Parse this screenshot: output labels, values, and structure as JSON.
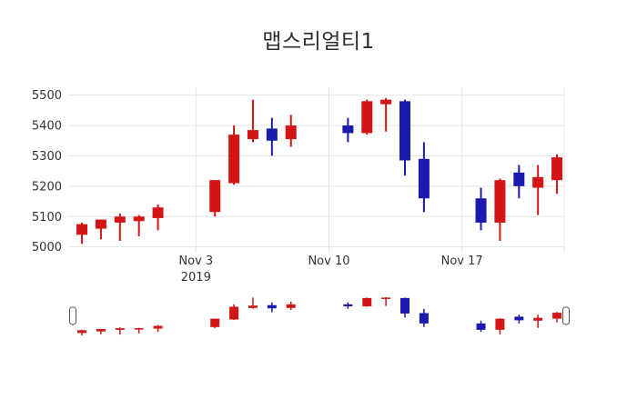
{
  "title": {
    "text": "맵스리얼티1"
  },
  "colors": {
    "increasing": "#d21515",
    "decreasing": "#1a1aaf",
    "grid": "#e6e6e6",
    "axis_text": "#333333",
    "title_text": "#2d2d2d",
    "slider_handle_border": "#555555",
    "slider_handle_fill": "#ffffff"
  },
  "y_axis": {
    "tick_values": [
      5000,
      5100,
      5200,
      5300,
      5400,
      5500
    ],
    "tick_labels": [
      "5000",
      "5100",
      "5200",
      "5300",
      "5400",
      "5500"
    ],
    "range": [
      4981,
      5529
    ]
  },
  "x_axis": {
    "range_days": [
      -0.72,
      25.38
    ],
    "ticks": [
      {
        "line1": "Nov 3",
        "line2": "2019",
        "day": 6
      },
      {
        "line1": "Nov 10",
        "line2": "",
        "day": 13
      },
      {
        "line1": "Nov 17",
        "line2": "",
        "day": 20
      }
    ]
  },
  "chart_data": {
    "type": "candlestick",
    "title": "맵스리얼티1",
    "legend_position": "none",
    "grid": "on",
    "rangeslider": {
      "visible": true,
      "value_range": [
        5010,
        5490
      ]
    },
    "increasing_color": "#d21515",
    "decreasing_color": "#1a1aaf",
    "ylim": [
      4981,
      5529
    ],
    "dates": [
      "2019-10-28",
      "2019-10-29",
      "2019-10-30",
      "2019-10-31",
      "2019-11-01",
      "2019-11-04",
      "2019-11-05",
      "2019-11-06",
      "2019-11-07",
      "2019-11-08",
      "2019-11-11",
      "2019-11-12",
      "2019-11-13",
      "2019-11-14",
      "2019-11-15",
      "2019-11-18",
      "2019-11-19",
      "2019-11-20",
      "2019-11-21",
      "2019-11-22"
    ],
    "day_index": [
      0,
      1,
      2,
      3,
      4,
      7,
      8,
      9,
      10,
      11,
      14,
      15,
      16,
      17,
      18,
      21,
      22,
      23,
      24,
      25
    ],
    "open": [
      5040,
      5060,
      5080,
      5085,
      5095,
      5115,
      5210,
      5355,
      5390,
      5355,
      5400,
      5375,
      5470,
      5480,
      5290,
      5160,
      5080,
      5245,
      5195,
      5220
    ],
    "high": [
      5080,
      5090,
      5110,
      5105,
      5140,
      5220,
      5400,
      5485,
      5425,
      5435,
      5425,
      5485,
      5490,
      5485,
      5345,
      5195,
      5225,
      5270,
      5270,
      5305
    ],
    "low": [
      5010,
      5025,
      5020,
      5035,
      5055,
      5100,
      5205,
      5345,
      5300,
      5330,
      5345,
      5370,
      5380,
      5235,
      5115,
      5055,
      5020,
      5160,
      5105,
      5175
    ],
    "close": [
      5075,
      5090,
      5100,
      5100,
      5130,
      5220,
      5370,
      5385,
      5350,
      5400,
      5375,
      5480,
      5485,
      5285,
      5160,
      5080,
      5220,
      5200,
      5230,
      5295
    ]
  }
}
